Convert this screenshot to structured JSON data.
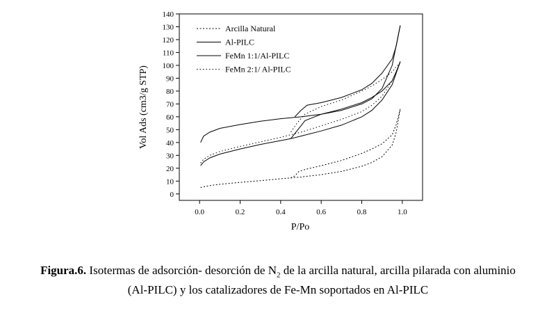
{
  "chart_data": {
    "type": "line",
    "xlabel": "P/Po",
    "ylabel": "Vol Ads (cm3/g STP)",
    "xlim": [
      -0.1,
      1.1
    ],
    "ylim": [
      -5,
      140
    ],
    "xticks": [
      "0.0",
      "0.2",
      "0.4",
      "0.6",
      "0.8",
      "1.0"
    ],
    "xtick_values": [
      0,
      0.2,
      0.4,
      0.6,
      0.8,
      1.0
    ],
    "yticks": [
      "0",
      "10",
      "20",
      "30",
      "40",
      "50",
      "60",
      "70",
      "80",
      "90",
      "100",
      "110",
      "120",
      "130",
      "140"
    ],
    "ytick_values": [
      0,
      10,
      20,
      30,
      40,
      50,
      60,
      70,
      80,
      90,
      100,
      110,
      120,
      130,
      140
    ],
    "legend_position": "top-left",
    "series": [
      {
        "name": "Arcilla Natural",
        "dash": "2,2.5",
        "adsorption": [
          [
            0.005,
            5
          ],
          [
            0.05,
            6.5
          ],
          [
            0.1,
            7.5
          ],
          [
            0.2,
            9
          ],
          [
            0.3,
            10.3
          ],
          [
            0.4,
            11.8
          ],
          [
            0.45,
            12.5
          ],
          [
            0.5,
            13.2
          ],
          [
            0.6,
            15
          ],
          [
            0.7,
            17.5
          ],
          [
            0.8,
            21.5
          ],
          [
            0.85,
            24.5
          ],
          [
            0.9,
            29
          ],
          [
            0.95,
            38
          ],
          [
            0.97,
            48
          ],
          [
            0.99,
            66
          ]
        ],
        "desorption": [
          [
            0.99,
            66
          ],
          [
            0.97,
            54
          ],
          [
            0.95,
            46
          ],
          [
            0.9,
            39
          ],
          [
            0.85,
            35
          ],
          [
            0.8,
            31.5
          ],
          [
            0.7,
            26
          ],
          [
            0.6,
            22
          ],
          [
            0.52,
            19
          ],
          [
            0.49,
            17.5
          ],
          [
            0.47,
            14
          ],
          [
            0.45,
            12.5
          ]
        ]
      },
      {
        "name": "Al-PILC",
        "dash": "",
        "adsorption": [
          [
            0.005,
            22
          ],
          [
            0.02,
            25
          ],
          [
            0.05,
            28
          ],
          [
            0.1,
            31
          ],
          [
            0.2,
            35
          ],
          [
            0.3,
            38.5
          ],
          [
            0.4,
            41.5
          ],
          [
            0.45,
            43
          ],
          [
            0.5,
            45
          ],
          [
            0.6,
            49
          ],
          [
            0.7,
            53.5
          ],
          [
            0.8,
            60
          ],
          [
            0.85,
            65
          ],
          [
            0.9,
            73
          ],
          [
            0.95,
            85
          ],
          [
            0.99,
            103
          ]
        ],
        "desorption": [
          [
            0.99,
            103
          ],
          [
            0.97,
            95
          ],
          [
            0.95,
            88
          ],
          [
            0.9,
            80
          ],
          [
            0.85,
            75
          ],
          [
            0.8,
            71
          ],
          [
            0.7,
            66
          ],
          [
            0.6,
            62
          ],
          [
            0.52,
            57
          ],
          [
            0.48,
            49
          ],
          [
            0.45,
            43
          ]
        ]
      },
      {
        "name": "FeMn 1:1/Al-PILC",
        "dash": "",
        "adsorption": [
          [
            0.005,
            40
          ],
          [
            0.02,
            45
          ],
          [
            0.05,
            48
          ],
          [
            0.1,
            51
          ],
          [
            0.2,
            54
          ],
          [
            0.3,
            56.5
          ],
          [
            0.4,
            58.5
          ],
          [
            0.5,
            60
          ],
          [
            0.6,
            62
          ],
          [
            0.7,
            65
          ],
          [
            0.8,
            70
          ],
          [
            0.85,
            74
          ],
          [
            0.9,
            82
          ],
          [
            0.95,
            100
          ],
          [
            0.99,
            131
          ]
        ],
        "desorption": [
          [
            0.99,
            131
          ],
          [
            0.97,
            115
          ],
          [
            0.95,
            105
          ],
          [
            0.9,
            94
          ],
          [
            0.85,
            86
          ],
          [
            0.8,
            81
          ],
          [
            0.7,
            75
          ],
          [
            0.6,
            71
          ],
          [
            0.53,
            69
          ],
          [
            0.5,
            65
          ],
          [
            0.47,
            60
          ]
        ]
      },
      {
        "name": "FeMn 2:1/ Al-PILC",
        "dash": "1.5,3",
        "adsorption": [
          [
            0.005,
            24
          ],
          [
            0.02,
            27
          ],
          [
            0.05,
            30
          ],
          [
            0.1,
            33
          ],
          [
            0.2,
            37
          ],
          [
            0.3,
            40.5
          ],
          [
            0.4,
            44
          ],
          [
            0.5,
            48
          ],
          [
            0.6,
            53
          ],
          [
            0.7,
            58
          ],
          [
            0.8,
            64
          ],
          [
            0.85,
            69
          ],
          [
            0.9,
            76
          ],
          [
            0.95,
            88
          ],
          [
            0.99,
            102
          ]
        ],
        "desorption": [
          [
            0.99,
            102
          ],
          [
            0.97,
            99
          ],
          [
            0.95,
            95
          ],
          [
            0.9,
            89
          ],
          [
            0.85,
            84
          ],
          [
            0.8,
            80
          ],
          [
            0.7,
            73
          ],
          [
            0.6,
            68
          ],
          [
            0.52,
            62
          ],
          [
            0.48,
            55
          ],
          [
            0.45,
            48
          ]
        ]
      }
    ]
  },
  "caption": {
    "label": "Figura.6.",
    "line1_before_sub": " Isotermas de adsorción- desorción de N",
    "line1_sub": "2",
    "line1_after_sub": " de la arcilla natural, arcilla pilarada con aluminio",
    "line2": "(Al-PILC) y los catalizadores de Fe-Mn soportados en Al-PILC"
  }
}
